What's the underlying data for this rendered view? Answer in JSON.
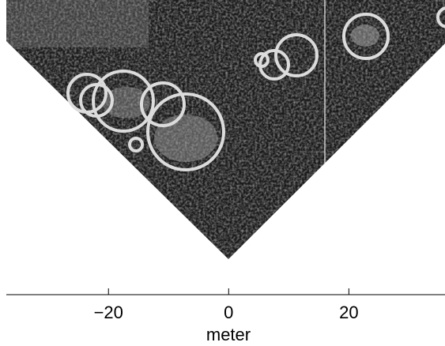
{
  "chart_data": {
    "type": "image",
    "xlabel": "meter",
    "xlim": [
      -37,
      36
    ],
    "xticks": [
      {
        "value": -20,
        "label": "−20"
      },
      0,
      20
    ]
  }
}
